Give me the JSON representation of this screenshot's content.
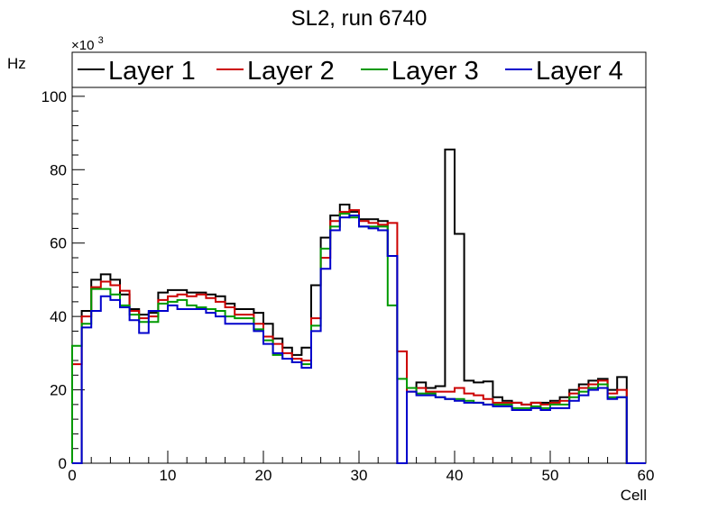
{
  "chart_data": {
    "type": "line",
    "title": "SL2, run 6740",
    "xlabel": "Cell",
    "ylabel": "Hz",
    "y_multiplier_label": "×10",
    "y_multiplier_exp": "3",
    "xlim": [
      0,
      60
    ],
    "ylim": [
      0,
      112
    ],
    "x_ticks": [
      0,
      10,
      20,
      30,
      40,
      50,
      60
    ],
    "y_ticks": [
      0,
      20,
      40,
      60,
      80,
      100
    ],
    "x_tick_labels": [
      "0",
      "10",
      "20",
      "30",
      "40",
      "50",
      "60"
    ],
    "y_tick_labels": [
      "0",
      "20",
      "40",
      "60",
      "80",
      "100"
    ],
    "grid": false,
    "legend_position": "top",
    "bin_edges_start": 0,
    "bin_width": 1,
    "series": [
      {
        "name": "Layer 1",
        "color": "#000000",
        "values": [
          0,
          41.5,
          50,
          51.5,
          50,
          46,
          42,
          40.5,
          41,
          46.5,
          47.2,
          47.2,
          46.5,
          46.5,
          46,
          45.5,
          43.5,
          42,
          42,
          41,
          38,
          34,
          31.5,
          29.5,
          31.5,
          48.5,
          61.5,
          67.5,
          70.5,
          68.5,
          66.5,
          66.5,
          66,
          56.5,
          0,
          20.5,
          22,
          20.5,
          21,
          85.5,
          62.5,
          22.5,
          22,
          22.3,
          18,
          17,
          16.5,
          16,
          16.5,
          16.5,
          17,
          18,
          20,
          21.5,
          22.5,
          23,
          20,
          23.5,
          0,
          0
        ]
      },
      {
        "name": "Layer 2",
        "color": "#cc0000",
        "values": [
          27,
          40,
          48,
          49.5,
          48.5,
          47,
          41.5,
          39.5,
          40,
          44.5,
          45.5,
          46,
          45.5,
          46,
          45,
          44,
          42.5,
          40.5,
          40.5,
          38,
          34.5,
          32.5,
          30,
          28.5,
          28,
          39.5,
          56,
          66,
          68.5,
          69,
          66,
          65.5,
          65,
          65.5,
          30.5,
          19.5,
          20.5,
          19.5,
          19.5,
          19.5,
          20.5,
          19,
          18.5,
          17.5,
          16.5,
          16.5,
          16.5,
          16,
          16.5,
          16,
          16.5,
          17,
          19,
          20.5,
          21.5,
          22.5,
          19,
          20,
          0,
          0
        ]
      },
      {
        "name": "Layer 3",
        "color": "#009900",
        "values": [
          32,
          38,
          47.5,
          47.5,
          46,
          43,
          40.5,
          38.5,
          38.5,
          43.5,
          44,
          44.5,
          43,
          42.5,
          42,
          41.5,
          40,
          39.5,
          39.5,
          36.5,
          33.5,
          29.5,
          28.5,
          27.5,
          27,
          37.5,
          58.5,
          64.5,
          68,
          67,
          64.5,
          64.5,
          64.5,
          43,
          23,
          20.5,
          19,
          19,
          18,
          17.5,
          17.5,
          17,
          16.5,
          16,
          16,
          16,
          15,
          15,
          15.5,
          15,
          16,
          16,
          18,
          19.5,
          20.5,
          21.5,
          18,
          18,
          0,
          0
        ]
      },
      {
        "name": "Layer 4",
        "color": "#0000cc",
        "values": [
          0,
          37,
          41.5,
          45.5,
          44.5,
          42.5,
          39,
          35.5,
          41.5,
          41.5,
          43,
          42,
          42,
          42,
          41,
          40,
          38,
          38,
          38,
          36,
          32.5,
          30,
          28.5,
          27.5,
          26,
          36,
          53,
          63.5,
          67,
          67.5,
          64.5,
          64,
          63.5,
          56.5,
          0,
          19.5,
          18.5,
          18.5,
          18,
          17.5,
          17,
          16.5,
          16.5,
          16,
          15.5,
          15.5,
          14.5,
          14.5,
          15,
          14.5,
          15,
          15,
          17,
          18.5,
          20,
          20.5,
          17.5,
          18,
          0,
          0
        ]
      }
    ]
  }
}
